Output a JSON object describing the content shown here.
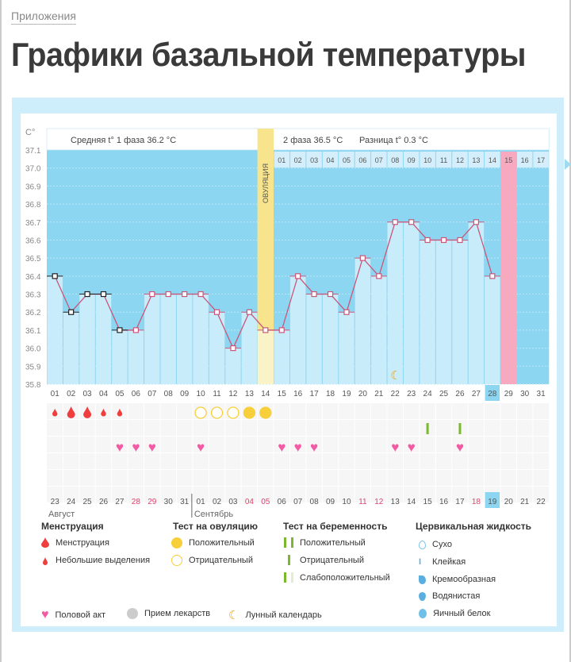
{
  "breadcrumb": "Приложения",
  "title": "Графики базальной температуры",
  "chart_data": {
    "type": "line",
    "ylabel": "C°",
    "ylim": [
      35.8,
      37.1
    ],
    "yticks": [
      "37.1",
      "37.0",
      "36.9",
      "36.8",
      "36.7",
      "36.6",
      "36.5",
      "36.4",
      "36.3",
      "36.2",
      "36.1",
      "36.0",
      "35.9",
      "35.8"
    ],
    "header_phase1": "Средняя t° 1 фаза 36.2 °C",
    "header_phase2": "2 фаза 36.5 °C",
    "header_diff": "Разница t° 0.3 °C",
    "ovulation_label": "ОВУЛЯЦИЯ",
    "ovulation_day": 14,
    "phase2_days": [
      "01",
      "02",
      "03",
      "04",
      "05",
      "06",
      "07",
      "08",
      "09",
      "10",
      "11",
      "12",
      "13",
      "14",
      "15",
      "16",
      "17"
    ],
    "cycle_days": [
      "01",
      "02",
      "03",
      "04",
      "05",
      "06",
      "07",
      "08",
      "09",
      "10",
      "11",
      "12",
      "13",
      "14",
      "15",
      "16",
      "17",
      "18",
      "19",
      "20",
      "21",
      "22",
      "23",
      "24",
      "25",
      "26",
      "27",
      "28",
      "29",
      "30",
      "31"
    ],
    "current_cycle_day": "28",
    "period_day": 29,
    "temperatures": [
      36.4,
      36.2,
      36.3,
      36.3,
      36.1,
      36.1,
      36.3,
      36.3,
      36.3,
      36.3,
      36.2,
      36.0,
      36.2,
      36.1,
      36.1,
      36.4,
      36.3,
      36.3,
      36.2,
      36.5,
      36.4,
      36.7,
      36.7,
      36.6,
      36.6,
      36.6,
      36.7,
      36.4,
      null,
      null,
      null
    ],
    "excluded_marks_days": [
      1,
      2,
      3,
      4,
      5
    ],
    "moon_day": 22,
    "dates": [
      "23",
      "24",
      "25",
      "26",
      "27",
      "28",
      "29",
      "30",
      "31",
      "01",
      "02",
      "03",
      "04",
      "05",
      "06",
      "07",
      "08",
      "09",
      "10",
      "11",
      "12",
      "13",
      "14",
      "15",
      "16",
      "17",
      "18",
      "19",
      "20",
      "21",
      "22"
    ],
    "weekend_dates_idx": [
      5,
      6,
      12,
      13,
      19,
      20,
      26
    ],
    "today_idx": 27,
    "months": [
      "Август",
      "Сентябрь"
    ],
    "menstruation": [
      {
        "day": 1,
        "size": "small"
      },
      {
        "day": 2,
        "size": "large"
      },
      {
        "day": 3,
        "size": "large"
      },
      {
        "day": 4,
        "size": "small"
      },
      {
        "day": 5,
        "size": "small"
      }
    ],
    "ovulation_tests": [
      {
        "day": 10,
        "result": "negative"
      },
      {
        "day": 11,
        "result": "negative"
      },
      {
        "day": 12,
        "result": "negative"
      },
      {
        "day": 13,
        "result": "positive"
      },
      {
        "day": 14,
        "result": "positive"
      }
    ],
    "pregnancy_tests": [
      {
        "day": 24,
        "result": "negative"
      },
      {
        "day": 26,
        "result": "negative"
      }
    ],
    "intercourse_days": [
      5,
      6,
      7,
      10,
      15,
      16,
      17,
      22,
      23,
      26
    ]
  },
  "colors": {
    "plot_bg": "#8dd6f2",
    "bar": "#c9ecfa",
    "ovulation": "#f8e48c",
    "period": "#f7a9c0",
    "line": "#c9577a",
    "weekend": "#e0436e",
    "heart": "#f35aa4",
    "blood": "#ee3e3e",
    "ovu_test": "#f7cf3a",
    "preg_test": "#7cb82f",
    "moon": "#f0a020"
  },
  "legend": {
    "menstruation": {
      "title": "Менструация",
      "items": [
        "Менструация",
        "Небольшие выделения"
      ]
    },
    "ovulation_test": {
      "title": "Тест на овуляцию",
      "items": [
        "Положительный",
        "Отрицательный"
      ]
    },
    "pregnancy_test": {
      "title": "Тест на беременность",
      "items": [
        "Положительный",
        "Отрицательный",
        "Слабоположительный"
      ]
    },
    "cervical": {
      "title": "Цервикальная жидкость",
      "items": [
        "Сухо",
        "Клейкая",
        "Кремообразная",
        "Водянистая",
        "Яичный белок"
      ]
    },
    "other": [
      "Половой акт",
      "Прием лекарств",
      "Лунный календарь"
    ]
  }
}
